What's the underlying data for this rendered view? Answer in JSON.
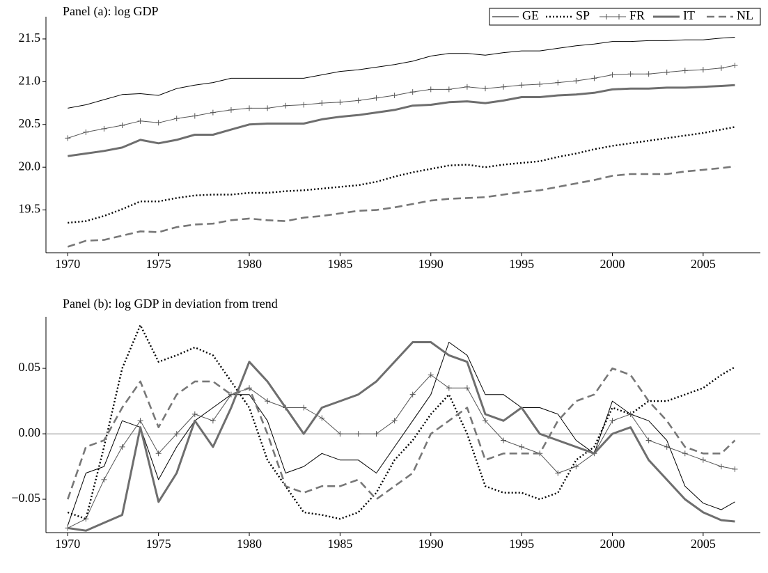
{
  "chart_data": [
    {
      "type": "line",
      "title": "Panel (a): log GDP",
      "legend": "upper right",
      "x": [
        1970,
        1971,
        1972,
        1973,
        1974,
        1975,
        1976,
        1977,
        1978,
        1979,
        1980,
        1981,
        1982,
        1983,
        1984,
        1985,
        1986,
        1987,
        1988,
        1989,
        1990,
        1991,
        1992,
        1993,
        1994,
        1995,
        1996,
        1997,
        1998,
        1999,
        2000,
        2001,
        2002,
        2003,
        2004,
        2005,
        2006,
        2006.75
      ],
      "xlim": [
        1968.8,
        2008.15
      ],
      "xticks": [
        1970,
        1975,
        1980,
        1985,
        1990,
        1995,
        2000,
        2005
      ],
      "ylim": [
        19.0,
        21.76
      ],
      "yticks": [
        19.5,
        {
          "value": 20.0,
          "label": "20.0"
        },
        20.5,
        {
          "value": 21.0,
          "label": "21.0"
        },
        21.5
      ],
      "series": [
        {
          "name": "GE",
          "color": "#000000",
          "line_style": "solid",
          "values": [
            20.69,
            20.73,
            20.79,
            20.85,
            20.86,
            20.84,
            20.92,
            20.96,
            20.99,
            21.04,
            21.04,
            21.04,
            21.04,
            21.04,
            21.08,
            21.12,
            21.14,
            21.17,
            21.2,
            21.24,
            21.3,
            21.33,
            21.33,
            21.31,
            21.34,
            21.36,
            21.36,
            21.39,
            21.42,
            21.44,
            21.47,
            21.47,
            21.48,
            21.48,
            21.49,
            21.49,
            21.51,
            21.52
          ]
        },
        {
          "name": "SP",
          "color": "#000000",
          "line_style": "dotted",
          "values": [
            19.35,
            19.37,
            19.43,
            19.51,
            19.6,
            19.6,
            19.64,
            19.67,
            19.68,
            19.68,
            19.7,
            19.7,
            19.72,
            19.73,
            19.75,
            19.77,
            19.79,
            19.83,
            19.89,
            19.94,
            19.98,
            20.02,
            20.03,
            20.0,
            20.03,
            20.05,
            20.07,
            20.12,
            20.16,
            20.21,
            20.25,
            20.28,
            20.31,
            20.34,
            20.37,
            20.4,
            20.44,
            20.47
          ]
        },
        {
          "name": "FR",
          "color": "#555555",
          "line_style": "plus",
          "values": [
            20.34,
            20.41,
            20.45,
            20.49,
            20.54,
            20.52,
            20.57,
            20.6,
            20.64,
            20.67,
            20.69,
            20.69,
            20.72,
            20.73,
            20.75,
            20.76,
            20.78,
            20.81,
            20.84,
            20.88,
            20.91,
            20.91,
            20.94,
            20.92,
            20.94,
            20.96,
            20.97,
            20.99,
            21.01,
            21.04,
            21.08,
            21.09,
            21.09,
            21.11,
            21.13,
            21.14,
            21.16,
            21.19
          ]
        },
        {
          "name": "IT",
          "color": "#6e6e6e",
          "line_style": "thick",
          "values": [
            20.13,
            20.16,
            20.19,
            20.23,
            20.32,
            20.28,
            20.32,
            20.38,
            20.38,
            20.44,
            20.5,
            20.51,
            20.51,
            20.51,
            20.56,
            20.59,
            20.61,
            20.64,
            20.67,
            20.72,
            20.73,
            20.76,
            20.77,
            20.75,
            20.78,
            20.82,
            20.82,
            20.84,
            20.85,
            20.87,
            20.91,
            20.92,
            20.92,
            20.93,
            20.93,
            20.94,
            20.95,
            20.96
          ]
        },
        {
          "name": "NL",
          "color": "#777777",
          "line_style": "dashed",
          "values": [
            19.07,
            19.14,
            19.15,
            19.2,
            19.25,
            19.24,
            19.3,
            19.33,
            19.34,
            19.38,
            19.4,
            19.38,
            19.37,
            19.41,
            19.43,
            19.46,
            19.49,
            19.5,
            19.53,
            19.57,
            19.61,
            19.63,
            19.64,
            19.65,
            19.68,
            19.71,
            19.73,
            19.77,
            19.81,
            19.85,
            19.9,
            19.92,
            19.92,
            19.92,
            19.95,
            19.97,
            19.99,
            20.01
          ]
        }
      ]
    },
    {
      "type": "line",
      "title": "Panel (b): log GDP in deviation from trend",
      "zero_line": true,
      "x": [
        1970,
        1971,
        1972,
        1973,
        1974,
        1975,
        1976,
        1977,
        1978,
        1979,
        1980,
        1981,
        1982,
        1983,
        1984,
        1985,
        1986,
        1987,
        1988,
        1989,
        1990,
        1991,
        1992,
        1993,
        1994,
        1995,
        1996,
        1997,
        1998,
        1999,
        2000,
        2001,
        2002,
        2003,
        2004,
        2005,
        2006,
        2006.75
      ],
      "xlim": [
        1968.8,
        2008.15
      ],
      "xticks": [
        1970,
        1975,
        1980,
        1985,
        1990,
        1995,
        2000,
        2005
      ],
      "ylim": [
        -0.0755,
        0.0894
      ],
      "yticks": [
        {
          "value": -0.05,
          "label": "−0.05"
        },
        {
          "value": 0,
          "label": "0.00"
        },
        0.05
      ],
      "series": [
        {
          "name": "GE",
          "color": "#000000",
          "line_style": "solid",
          "values": [
            -0.07,
            -0.03,
            -0.025,
            0.01,
            0.005,
            -0.035,
            -0.01,
            0.01,
            0.02,
            0.03,
            0.03,
            0.01,
            -0.03,
            -0.025,
            -0.015,
            -0.02,
            -0.02,
            -0.03,
            -0.01,
            0.01,
            0.03,
            0.07,
            0.06,
            0.03,
            0.03,
            0.02,
            0.02,
            0.015,
            -0.005,
            -0.015,
            0.025,
            0.015,
            0.01,
            -0.005,
            -0.04,
            -0.053,
            -0.058,
            -0.052
          ]
        },
        {
          "name": "SP",
          "color": "#000000",
          "line_style": "dotted",
          "values": [
            -0.06,
            -0.065,
            -0.01,
            0.05,
            0.083,
            0.055,
            0.06,
            0.066,
            0.06,
            0.04,
            0.02,
            -0.02,
            -0.04,
            -0.06,
            -0.062,
            -0.065,
            -0.06,
            -0.045,
            -0.02,
            -0.005,
            0.015,
            0.03,
            0.0,
            -0.04,
            -0.045,
            -0.045,
            -0.05,
            -0.045,
            -0.02,
            -0.01,
            0.02,
            0.015,
            0.025,
            0.025,
            0.03,
            0.035,
            0.045,
            0.051
          ]
        },
        {
          "name": "FR",
          "color": "#555555",
          "line_style": "plus",
          "values": [
            -0.072,
            -0.065,
            -0.035,
            -0.01,
            0.01,
            -0.015,
            0.0,
            0.015,
            0.01,
            0.03,
            0.035,
            0.025,
            0.02,
            0.02,
            0.012,
            0.0,
            0.0,
            0.0,
            0.01,
            0.03,
            0.045,
            0.035,
            0.035,
            0.01,
            -0.005,
            -0.01,
            -0.015,
            -0.03,
            -0.025,
            -0.015,
            0.01,
            0.015,
            -0.005,
            -0.01,
            -0.015,
            -0.02,
            -0.025,
            -0.027
          ]
        },
        {
          "name": "IT",
          "color": "#6e6e6e",
          "line_style": "thick",
          "values": [
            -0.072,
            -0.074,
            -0.068,
            -0.062,
            0.005,
            -0.052,
            -0.03,
            0.01,
            -0.01,
            0.02,
            0.055,
            0.04,
            0.02,
            0.0,
            0.02,
            0.025,
            0.03,
            0.04,
            0.055,
            0.07,
            0.07,
            0.06,
            0.055,
            0.015,
            0.01,
            0.02,
            0.0,
            -0.005,
            -0.01,
            -0.015,
            0.0,
            0.005,
            -0.02,
            -0.035,
            -0.05,
            -0.06,
            -0.066,
            -0.067
          ]
        },
        {
          "name": "NL",
          "color": "#777777",
          "line_style": "dashed",
          "values": [
            -0.05,
            -0.01,
            -0.005,
            0.02,
            0.04,
            0.005,
            0.03,
            0.04,
            0.04,
            0.03,
            0.035,
            0.0,
            -0.04,
            -0.045,
            -0.04,
            -0.04,
            -0.035,
            -0.05,
            -0.04,
            -0.03,
            0.0,
            0.01,
            0.02,
            -0.02,
            -0.015,
            -0.015,
            -0.015,
            0.01,
            0.025,
            0.03,
            0.05,
            0.045,
            0.025,
            0.01,
            -0.01,
            -0.015,
            -0.015,
            -0.005
          ]
        }
      ]
    }
  ]
}
